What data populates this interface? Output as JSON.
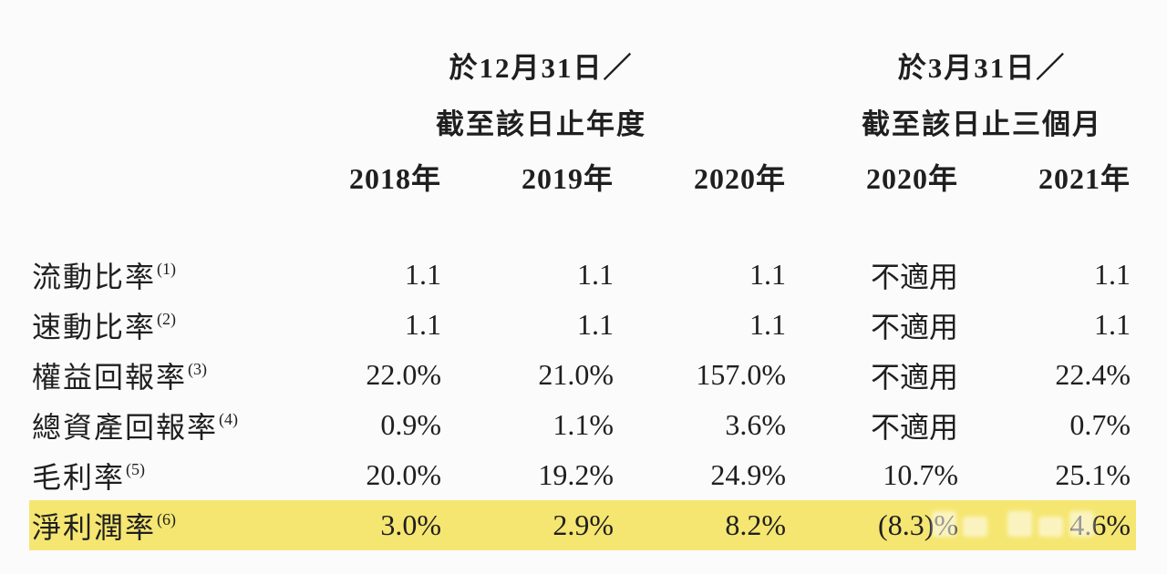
{
  "page": {
    "background_color": "#fbfbfb",
    "text_color": "#1f1f1f"
  },
  "table": {
    "highlight_color": "#f5e672",
    "group_headers": [
      {
        "line1": "於12月31日／",
        "line2": "截至該日止年度"
      },
      {
        "line1": "於3月31日／",
        "line2": "截至該日止三個月"
      }
    ],
    "year_headers": [
      "2018年",
      "2019年",
      "2020年",
      "2020年",
      "2021年"
    ],
    "rows": [
      {
        "label": "流動比率",
        "note": "(1)",
        "values": [
          "1.1",
          "1.1",
          "1.1",
          "不適用",
          "1.1"
        ]
      },
      {
        "label": "速動比率",
        "note": "(2)",
        "values": [
          "1.1",
          "1.1",
          "1.1",
          "不適用",
          "1.1"
        ]
      },
      {
        "label": "權益回報率",
        "note": "(3)",
        "values": [
          "22.0%",
          "21.0%",
          "157.0%",
          "不適用",
          "22.4%"
        ]
      },
      {
        "label": "總資產回報率",
        "note": "(4)",
        "values": [
          "0.9%",
          "1.1%",
          "3.6%",
          "不適用",
          "0.7%"
        ]
      },
      {
        "label": "毛利率",
        "note": "(5)",
        "values": [
          "20.0%",
          "19.2%",
          "24.9%",
          "10.7%",
          "25.1%"
        ]
      },
      {
        "label": "淨利潤率",
        "note": "(6)",
        "values": [
          "3.0%",
          "2.9%",
          "8.2%",
          "(8.3)%",
          "4.6%"
        ],
        "highlight": true
      }
    ]
  },
  "chart_data": {
    "type": "table",
    "column_groups": [
      {
        "title": "於12月31日／截至該日止年度",
        "columns": [
          "2018年",
          "2019年",
          "2020年"
        ]
      },
      {
        "title": "於3月31日／截至該日止三個月",
        "columns": [
          "2020年",
          "2021年"
        ]
      }
    ],
    "columns": [
      "2018年",
      "2019年",
      "2020年",
      "2020年",
      "2021年"
    ],
    "rows": [
      [
        "流動比率(1)",
        "1.1",
        "1.1",
        "1.1",
        "不適用",
        "1.1"
      ],
      [
        "速動比率(2)",
        "1.1",
        "1.1",
        "1.1",
        "不適用",
        "1.1"
      ],
      [
        "權益回報率(3)",
        "22.0%",
        "21.0%",
        "157.0%",
        "不適用",
        "22.4%"
      ],
      [
        "總資產回報率(4)",
        "0.9%",
        "1.1%",
        "3.6%",
        "不適用",
        "0.7%"
      ],
      [
        "毛利率(5)",
        "20.0%",
        "19.2%",
        "24.9%",
        "10.7%",
        "25.1%"
      ],
      [
        "淨利潤率(6)",
        "3.0%",
        "2.9%",
        "8.2%",
        "(8.3)%",
        "4.6%"
      ]
    ],
    "highlighted_rows": [
      "淨利潤率(6)"
    ]
  }
}
